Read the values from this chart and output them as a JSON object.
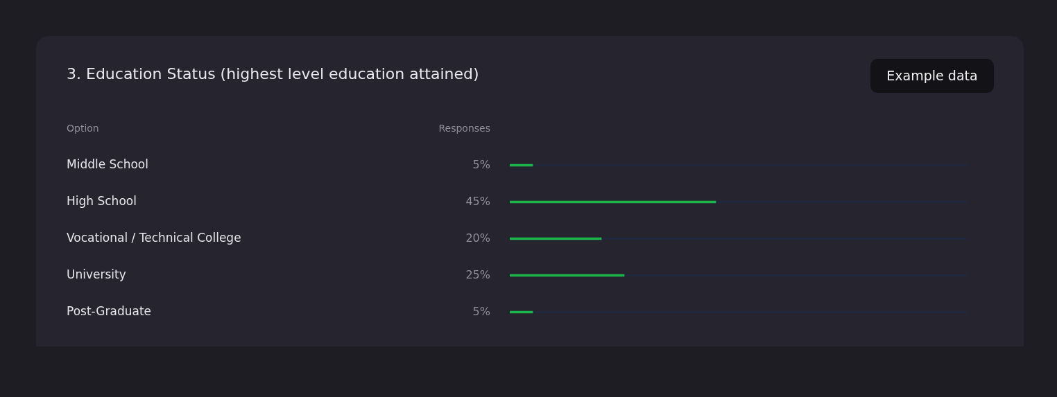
{
  "chart_data": {
    "type": "bar",
    "orientation": "horizontal",
    "title": "3. Education Status (highest level education attained)",
    "categories": [
      "Middle School",
      "High School",
      "Vocational / Technical College",
      "University",
      "Post-Graduate"
    ],
    "values": [
      5,
      45,
      20,
      25,
      5
    ],
    "color": "#1db64a",
    "value_labels": [
      "5%",
      "45%",
      "20%",
      "25%",
      "5%"
    ],
    "xlim": [
      0,
      100
    ],
    "legend": false,
    "tick_labels": "y",
    "annotations": [
      "Option",
      "Responses",
      "Example data"
    ]
  }
}
